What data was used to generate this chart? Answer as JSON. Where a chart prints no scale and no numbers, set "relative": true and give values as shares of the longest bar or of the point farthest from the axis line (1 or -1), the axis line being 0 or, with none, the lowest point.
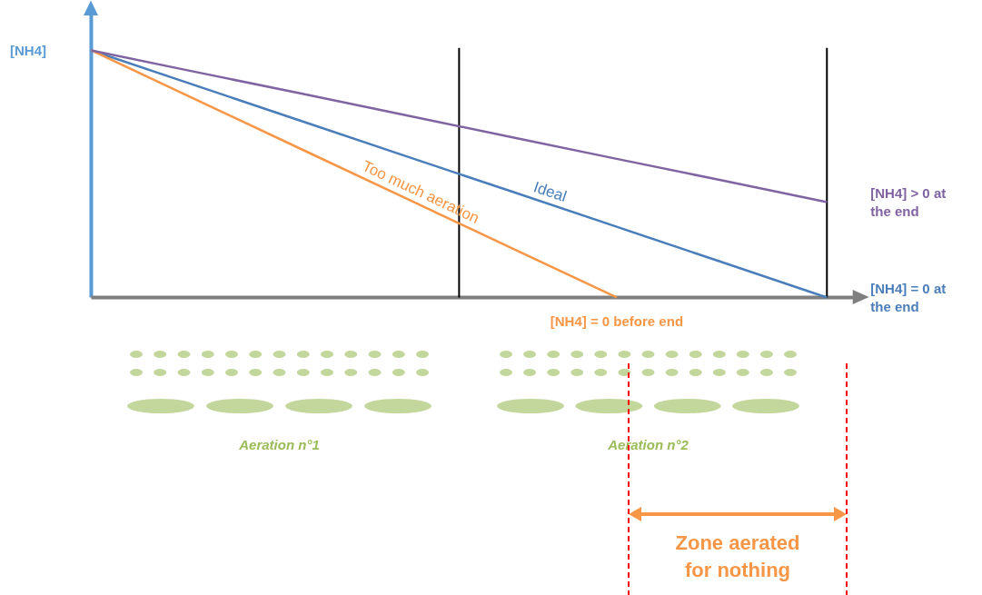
{
  "chart_data": {
    "type": "line",
    "relative": true,
    "ylabel": "[NH4]",
    "categories": [
      null,
      null,
      null,
      null,
      null,
      null,
      null,
      null
    ],
    "series": [
      {
        "name": "Ideal",
        "color": "#4a7ebb",
        "values": [
          1,
          0.857,
          0.714,
          0.571,
          0.429,
          0.286,
          0.143,
          0
        ]
      },
      {
        "name": "Too much aeration",
        "color": "#f79646",
        "values": [
          1,
          0.8,
          0.6,
          0.4,
          0.2,
          0,
          null,
          null
        ]
      },
      {
        "color": "#8064a2",
        "values": [
          1,
          0.912,
          0.825,
          0.737,
          0.649,
          0.561,
          0.474,
          0.386
        ]
      }
    ],
    "annotations": [
      "[NH4] = 0 at the end",
      "[NH4] = 0 before end",
      "[NH4] > 0 at the end",
      "Aeration n°1",
      "Aeration n°2",
      "Zone aerated for nothing"
    ],
    "marker": "none",
    "line_style": "solid"
  }
}
